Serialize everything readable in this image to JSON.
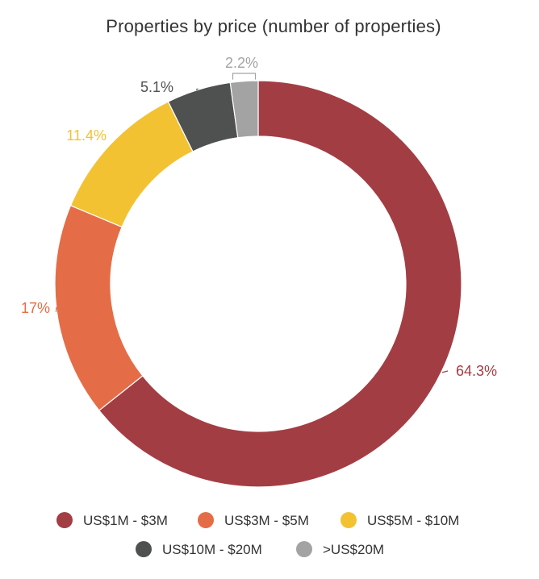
{
  "chart_data": {
    "type": "pie",
    "variant": "donut",
    "title": "Properties by price (number of properties)",
    "slices": [
      {
        "name": "US$1M - $3M",
        "value": 64.3,
        "label": "64.3%",
        "color": "#a33d44"
      },
      {
        "name": "US$3M - $5M",
        "value": 17.0,
        "label": "17%",
        "color": "#e46d47"
      },
      {
        "name": "US$5M - $10M",
        "value": 11.4,
        "label": "11.4%",
        "color": "#f3c232"
      },
      {
        "name": "US$10M - $20M",
        "value": 5.1,
        "label": "5.1%",
        "color": "#4f5050"
      },
      {
        "name": ">US$20M",
        "value": 2.2,
        "label": "2.2%",
        "color": "#a3a3a3"
      }
    ],
    "legend_position": "bottom"
  }
}
